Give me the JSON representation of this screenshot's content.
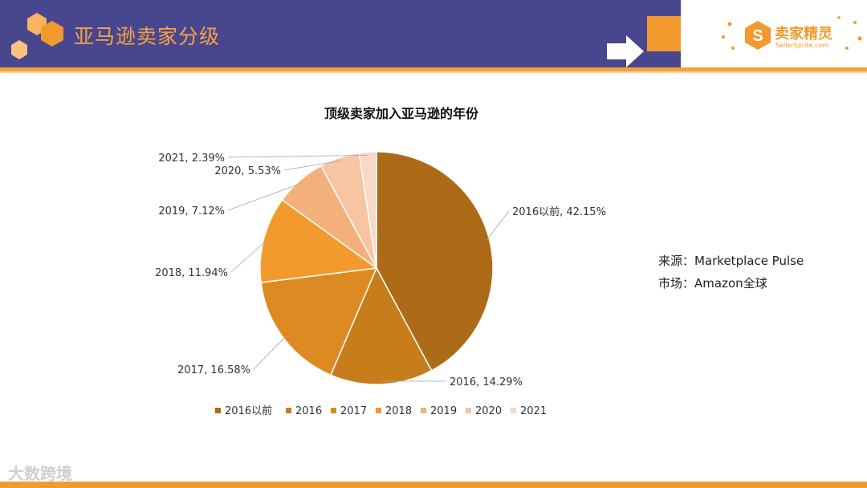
{
  "header": {
    "title": "亚马逊卖家分级",
    "logo_text": "卖家精灵",
    "logo_sub": "SellerSprite.com"
  },
  "colors": {
    "header_bg": "#48468f",
    "accent": "#f29a2e",
    "title_text": "#f6a340"
  },
  "chart_data": {
    "type": "pie",
    "title": "顶级卖家加入亚马逊的年份",
    "categories": [
      "2016以前",
      "2016",
      "2017",
      "2018",
      "2019",
      "2020",
      "2021"
    ],
    "values": [
      42.15,
      14.29,
      16.58,
      11.94,
      7.12,
      5.53,
      2.39
    ],
    "data_labels": [
      "2016以前, 42.15%",
      "2016, 14.29%",
      "2017, 16.58%",
      "2018, 11.94%",
      "2019, 7.12%",
      "2020, 5.53%",
      "2021, 2.39%"
    ],
    "colors": [
      "#ad6a17",
      "#c87d1b",
      "#de8a23",
      "#f29a2e",
      "#f3b07a",
      "#f7c5a1",
      "#f9d8c5"
    ],
    "legend_position": "bottom",
    "start_angle": "12 o'clock",
    "direction": "clockwise"
  },
  "notes": {
    "source": "来源：Marketplace Pulse",
    "market": "市场：Amazon全球"
  },
  "watermark": "大数跨境"
}
